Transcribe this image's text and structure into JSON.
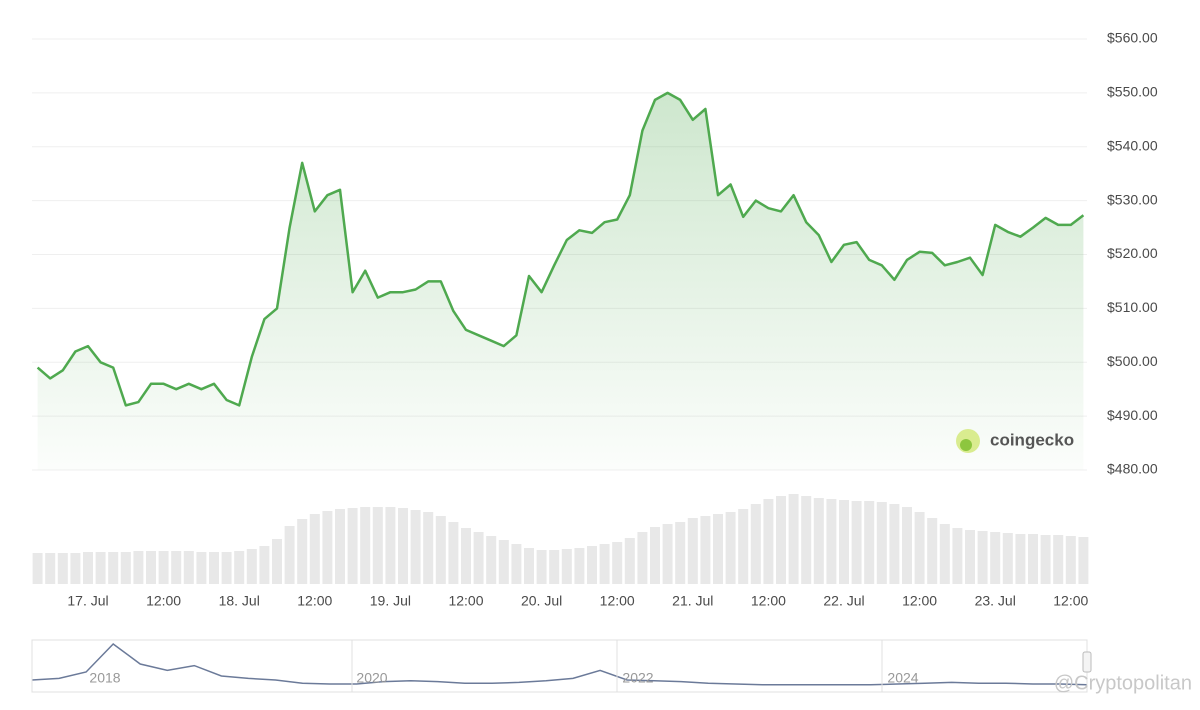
{
  "chart_data": {
    "type": "line",
    "categories": [
      null,
      null,
      null,
      null,
      "17. Jul",
      null,
      null,
      null,
      null,
      null,
      "12:00",
      null,
      null,
      null,
      null,
      null,
      "18. Jul",
      null,
      null,
      null,
      null,
      null,
      "12:00",
      null,
      null,
      null,
      null,
      null,
      "19. Jul",
      null,
      null,
      null,
      null,
      null,
      "12:00",
      null,
      null,
      null,
      null,
      null,
      "20. Jul",
      null,
      null,
      null,
      null,
      null,
      "12:00",
      null,
      null,
      null,
      null,
      null,
      "21. Jul",
      null,
      null,
      null,
      null,
      null,
      "12:00",
      null,
      null,
      null,
      null,
      null,
      "22. Jul",
      null,
      null,
      null,
      null,
      null,
      "12:00",
      null,
      null,
      null,
      null,
      null,
      "23. Jul",
      null,
      null,
      null,
      null,
      null,
      "12:00",
      null
    ],
    "values": [
      499,
      497,
      498.5,
      502,
      503,
      500,
      499,
      492,
      492.6,
      496,
      496,
      495,
      496,
      495,
      496,
      493,
      492,
      501,
      508,
      510,
      525,
      537,
      528,
      531,
      532,
      513,
      517,
      512,
      513,
      513,
      513.5,
      515,
      515,
      509.5,
      506,
      505,
      504,
      503,
      505,
      516,
      513,
      518,
      522.7,
      524.5,
      524,
      526,
      526.5,
      531,
      543,
      548.7,
      550,
      548.7,
      545,
      547,
      531,
      533,
      527,
      530,
      528.6,
      528,
      531,
      526,
      523.6,
      518.6,
      521.8,
      522.3,
      519,
      518,
      515.3,
      519,
      520.5,
      520.3,
      518,
      518.6,
      519.4,
      516.2,
      525.5,
      524.2,
      523.3,
      525,
      526.8,
      525.5,
      525.5,
      527.3
    ],
    "color": "#4fa94f",
    "ylim": [
      480,
      560
    ],
    "yticks": [
      {
        "value": 480,
        "label": "$480.00"
      },
      {
        "value": 490,
        "label": "$490.00"
      },
      {
        "value": 500,
        "label": "$500.00"
      },
      {
        "value": 510,
        "label": "$510.00"
      },
      {
        "value": 520,
        "label": "$520.00"
      },
      {
        "value": 530,
        "label": "$530.00"
      },
      {
        "value": 540,
        "label": "$540.00"
      },
      {
        "value": 550,
        "label": "$550.00"
      },
      {
        "value": 560,
        "label": "$560.00"
      }
    ],
    "grid": true,
    "volume": {
      "color": "#e8e8e8",
      "values": [
        31,
        31,
        31,
        31,
        32,
        32,
        32,
        32,
        33,
        33,
        33,
        33,
        33,
        32,
        32,
        32,
        33,
        35,
        38,
        45,
        58,
        65,
        70,
        73,
        75,
        76,
        77,
        77,
        77,
        76,
        74,
        72,
        68,
        62,
        56,
        52,
        48,
        44,
        40,
        36,
        34,
        34,
        35,
        36,
        38,
        40,
        42,
        46,
        52,
        57,
        60,
        62,
        66,
        68,
        70,
        72,
        75,
        80,
        85,
        88,
        90,
        88,
        86,
        85,
        84,
        83,
        83,
        82,
        80,
        77,
        72,
        66,
        60,
        56,
        54,
        53,
        52,
        51,
        50,
        50,
        49,
        49,
        48,
        47
      ]
    },
    "navigator": {
      "labels": [
        "2018",
        "2020",
        "2022",
        "2024"
      ],
      "values": [
        10,
        12,
        20,
        55,
        30,
        22,
        28,
        15,
        12,
        10,
        6,
        5,
        5,
        8,
        9,
        8,
        6,
        6,
        7,
        9,
        12,
        22,
        10,
        9,
        8,
        6,
        5,
        4,
        4,
        4,
        4,
        4,
        5,
        6,
        7,
        6,
        6,
        5,
        5,
        4
      ]
    },
    "logo": "coingecko",
    "watermark": "@Cryptopolitan"
  }
}
